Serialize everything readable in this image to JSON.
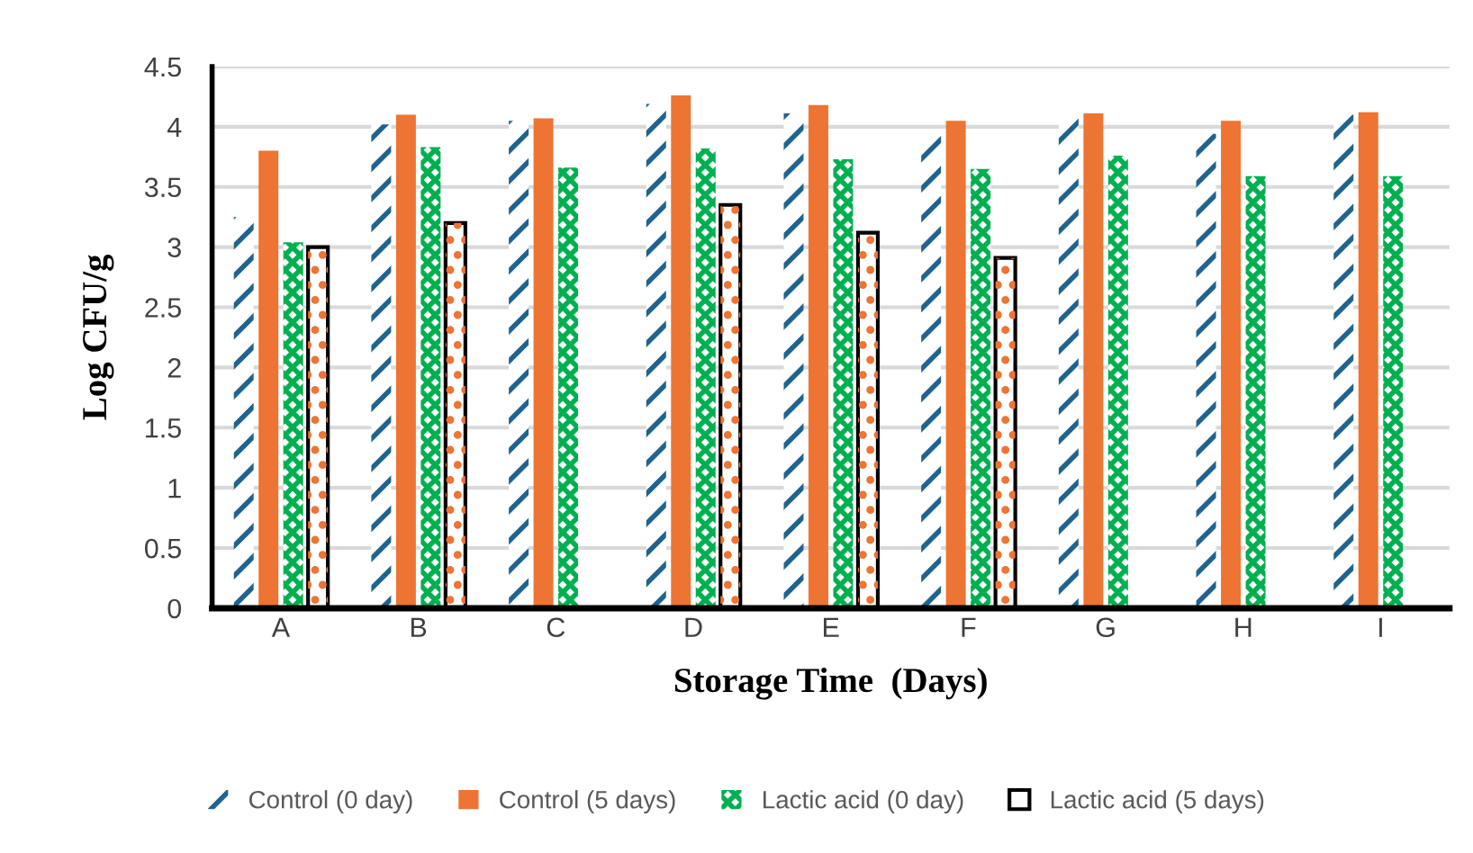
{
  "chart_data": {
    "type": "bar",
    "xlabel": "Storage Time  (Days)",
    "ylabel": "Log CFU/g",
    "categories": [
      "A",
      "B",
      "C",
      "D",
      "E",
      "F",
      "G",
      "H",
      "I"
    ],
    "series": [
      {
        "name": "Control (0 day)",
        "color": "#1f6391",
        "values": [
          3.25,
          4.02,
          4.05,
          4.19,
          4.11,
          3.93,
          4.08,
          3.94,
          4.1
        ]
      },
      {
        "name": "Control (5 days)",
        "color": "#ed7432",
        "values": [
          3.8,
          4.1,
          4.07,
          4.26,
          4.18,
          4.05,
          4.11,
          4.05,
          4.12
        ]
      },
      {
        "name": "Lactic acid (0 day)",
        "color": "#00b050",
        "values": [
          3.04,
          3.83,
          3.66,
          3.82,
          3.73,
          3.65,
          3.76,
          3.59,
          3.59
        ]
      },
      {
        "name": "Lactic acid (5 days)",
        "color": "#ffffff",
        "values": [
          3.0,
          3.2,
          null,
          3.35,
          3.12,
          2.91,
          null,
          null,
          null
        ]
      }
    ],
    "ylim": [
      0,
      4.5
    ],
    "yticks": [
      0,
      0.5,
      1,
      1.5,
      2,
      2.5,
      3,
      3.5,
      4,
      4.5
    ],
    "grid": "y",
    "legend": "bottom"
  }
}
